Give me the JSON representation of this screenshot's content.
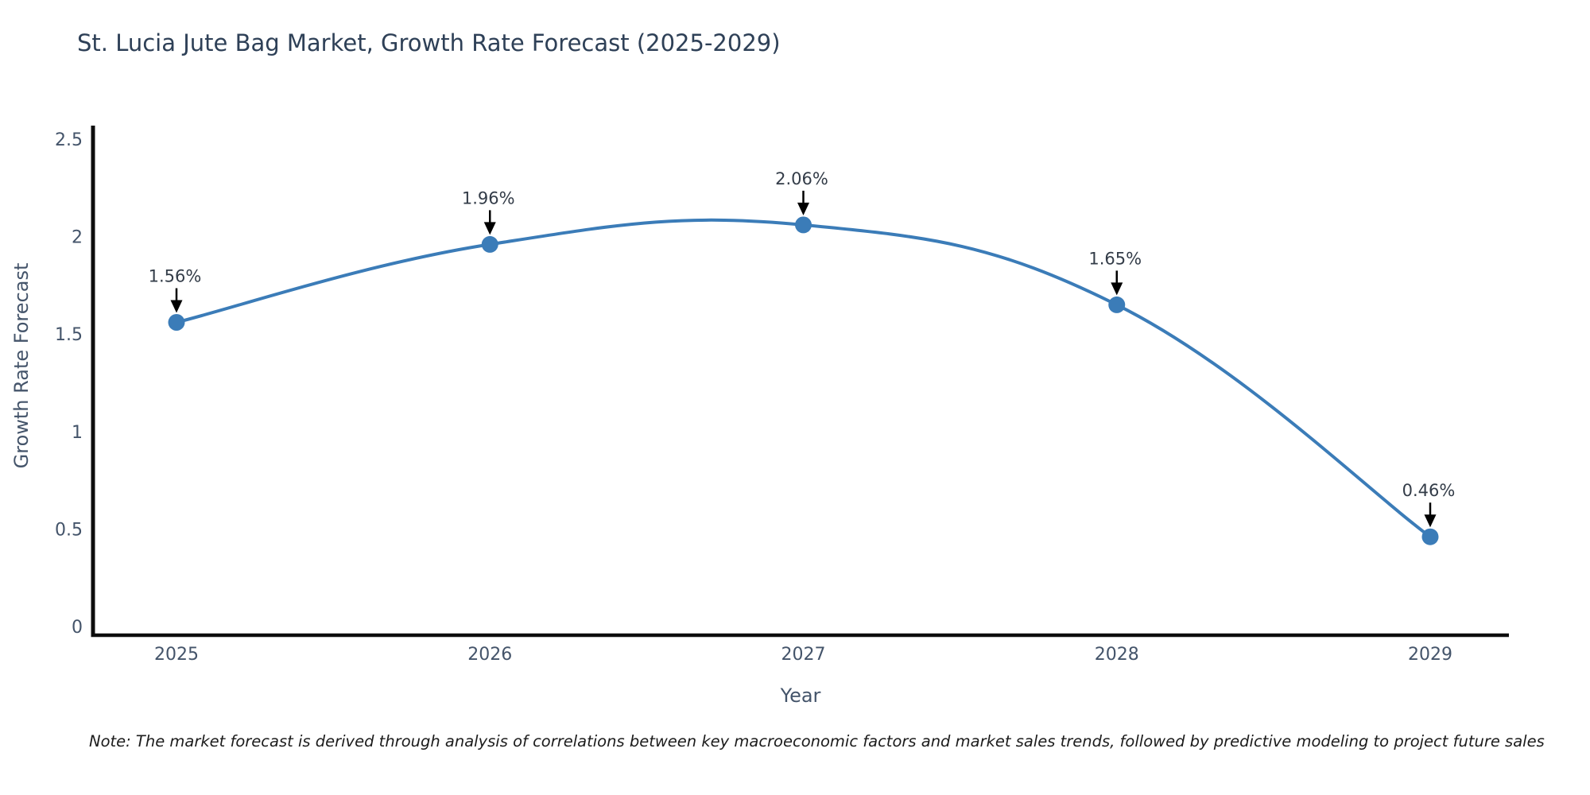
{
  "chart_data": {
    "type": "line",
    "title": "St. Lucia Jute Bag Market, Growth Rate Forecast (2025-2029)",
    "xlabel": "Year",
    "ylabel": "Growth Rate Forecast",
    "categories": [
      "2025",
      "2026",
      "2027",
      "2028",
      "2029"
    ],
    "series": [
      {
        "name": "Growth Rate Forecast",
        "values": [
          1.56,
          1.96,
          2.06,
          1.65,
          0.46
        ],
        "point_labels": [
          "1.56%",
          "1.96%",
          "2.06%",
          "1.65%",
          "0.46%"
        ]
      }
    ],
    "ylim": [
      0,
      2.5
    ],
    "y_ticks": [
      0,
      0.5,
      1,
      1.5,
      2,
      2.5
    ],
    "y_tick_labels": [
      "0",
      "0.5",
      "1",
      "1.5",
      "2",
      "2.5"
    ],
    "line_shape": "spline",
    "grid": false,
    "legend_position": "none",
    "colors": {
      "line": "#3b7cb8",
      "marker": "#3b7cb8",
      "axis": "#0d0d0d",
      "tick_text": "#44546a",
      "annotation_text": "#333c48",
      "arrow": "#000000",
      "background": "#ffffff"
    }
  },
  "note": {
    "text": "Note: The market forecast is derived through analysis of correlations between key macroeconomic factors and market sales trends, followed by predictive modeling to project future sales"
  }
}
